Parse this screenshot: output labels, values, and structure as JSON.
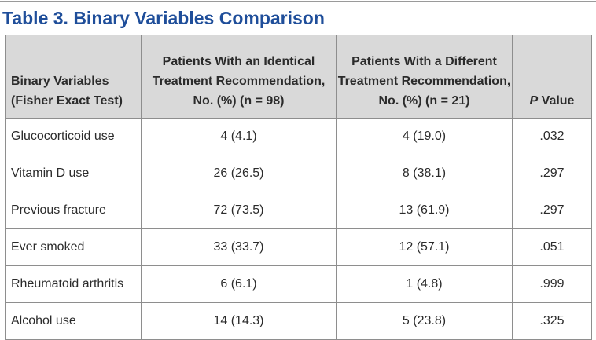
{
  "title": "Table 3. Binary Variables Comparison",
  "header": {
    "col1": [
      "Binary Variables",
      "(Fisher Exact Test)"
    ],
    "col2": [
      "Patients With an Identical",
      "Treatment Recommendation,",
      "No. (%) (n = 98)"
    ],
    "col3": [
      "Patients With a Different",
      "Treatment Recommendation,",
      "No. (%) (n = 21)"
    ],
    "col4_italic": "P",
    "col4_rest": " Value"
  },
  "rows": [
    {
      "variable": "Glucocorticoid use",
      "identical": "4 (4.1)",
      "different": "4 (19.0)",
      "p": ".032"
    },
    {
      "variable": "Vitamin D use",
      "identical": "26 (26.5)",
      "different": "8 (38.1)",
      "p": ".297"
    },
    {
      "variable": "Previous fracture",
      "identical": "72 (73.5)",
      "different": "13 (61.9)",
      "p": ".297"
    },
    {
      "variable": "Ever smoked",
      "identical": "33 (33.7)",
      "different": "12 (57.1)",
      "p": ".051"
    },
    {
      "variable": "Rheumatoid arthritis",
      "identical": "6 (6.1)",
      "different": "1 (4.8)",
      "p": ".999"
    },
    {
      "variable": "Alcohol use",
      "identical": "14 (14.3)",
      "different": "5 (23.8)",
      "p": ".325"
    }
  ],
  "colors": {
    "title": "#1f4e9a",
    "header_bg": "#d9d9d9",
    "border": "#8e8e8e",
    "text": "#2b2b2b"
  }
}
